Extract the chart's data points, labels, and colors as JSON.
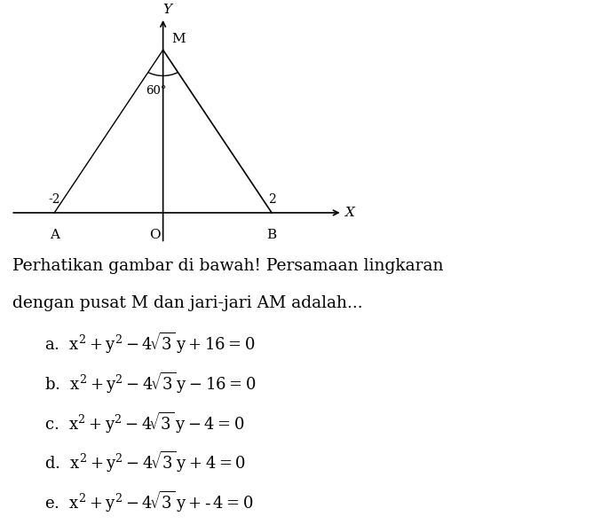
{
  "title_line1": "Perhatikan gambar di bawah! Persamaan lingkaran",
  "title_line2": "dengan pusat M dan jari-jari AM adalah...",
  "M": [
    0,
    3.464
  ],
  "A": [
    -2,
    0
  ],
  "B": [
    2,
    0
  ],
  "O": [
    0,
    0
  ],
  "angle_label": "60°",
  "bg_color": "#ffffff",
  "line_color": "#000000",
  "font_color": "#000000",
  "diagram_xlim": [
    -3.0,
    3.5
  ],
  "diagram_ylim": [
    -0.85,
    4.3
  ],
  "label_fontsize": 11,
  "text_fontsize": 13.5,
  "option_fontsize": 13
}
